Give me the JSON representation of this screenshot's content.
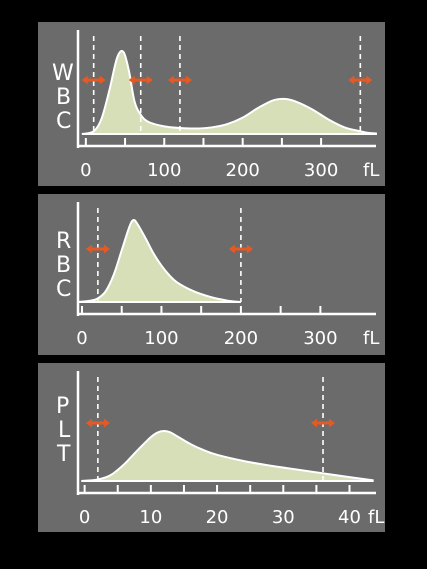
{
  "colors": {
    "background": "#000000",
    "panel": "#6b6b6b",
    "fill": "#d6dfb8",
    "axis": "#ffffff",
    "marker": "#e55a24"
  },
  "chart_data": [
    {
      "type": "area",
      "ylabel": "WBC",
      "unit": "fL",
      "xlim": [
        -10,
        370
      ],
      "ticks": [
        0,
        100,
        200,
        300
      ],
      "minor_ticks": [
        50,
        150,
        250
      ],
      "cutoffs": [
        10,
        70,
        120,
        350
      ],
      "x": [
        -5,
        10,
        20,
        30,
        40,
        48,
        55,
        62,
        70,
        80,
        100,
        120,
        140,
        160,
        180,
        200,
        220,
        240,
        255,
        270,
        290,
        310,
        330,
        350,
        360,
        370
      ],
      "values": [
        0,
        5,
        28,
        80,
        140,
        150,
        115,
        60,
        35,
        22,
        14,
        11,
        10,
        12,
        18,
        30,
        48,
        62,
        64,
        58,
        44,
        26,
        12,
        5,
        2,
        1
      ]
    },
    {
      "type": "area",
      "ylabel": "RBC",
      "unit": "fL",
      "xlim": [
        -5,
        370
      ],
      "ticks": [
        0,
        100,
        200,
        300
      ],
      "minor_ticks": [
        50,
        150,
        250
      ],
      "cutoffs": [
        20,
        200
      ],
      "x": [
        -5,
        10,
        20,
        30,
        40,
        50,
        60,
        65,
        70,
        80,
        90,
        100,
        110,
        120,
        140,
        160,
        180,
        190,
        200
      ],
      "values": [
        0,
        2,
        6,
        18,
        45,
        85,
        125,
        135,
        128,
        105,
        80,
        60,
        44,
        32,
        18,
        9,
        3,
        1,
        0
      ]
    },
    {
      "type": "area",
      "ylabel": "PLT",
      "unit": "fL",
      "xlim": [
        -1,
        44
      ],
      "ticks": [
        0,
        10,
        20,
        30,
        40
      ],
      "minor_ticks": [
        5,
        15,
        25,
        35
      ],
      "cutoffs": [
        2,
        36
      ],
      "x": [
        -0.5,
        2,
        4,
        6,
        8,
        10,
        11,
        12,
        13,
        14,
        16,
        18,
        20,
        24,
        28,
        32,
        36,
        40,
        43.5
      ],
      "values": [
        0,
        2,
        8,
        22,
        40,
        57,
        63,
        65,
        63,
        58,
        48,
        40,
        34,
        26,
        20,
        15,
        10,
        5,
        1
      ]
    }
  ]
}
